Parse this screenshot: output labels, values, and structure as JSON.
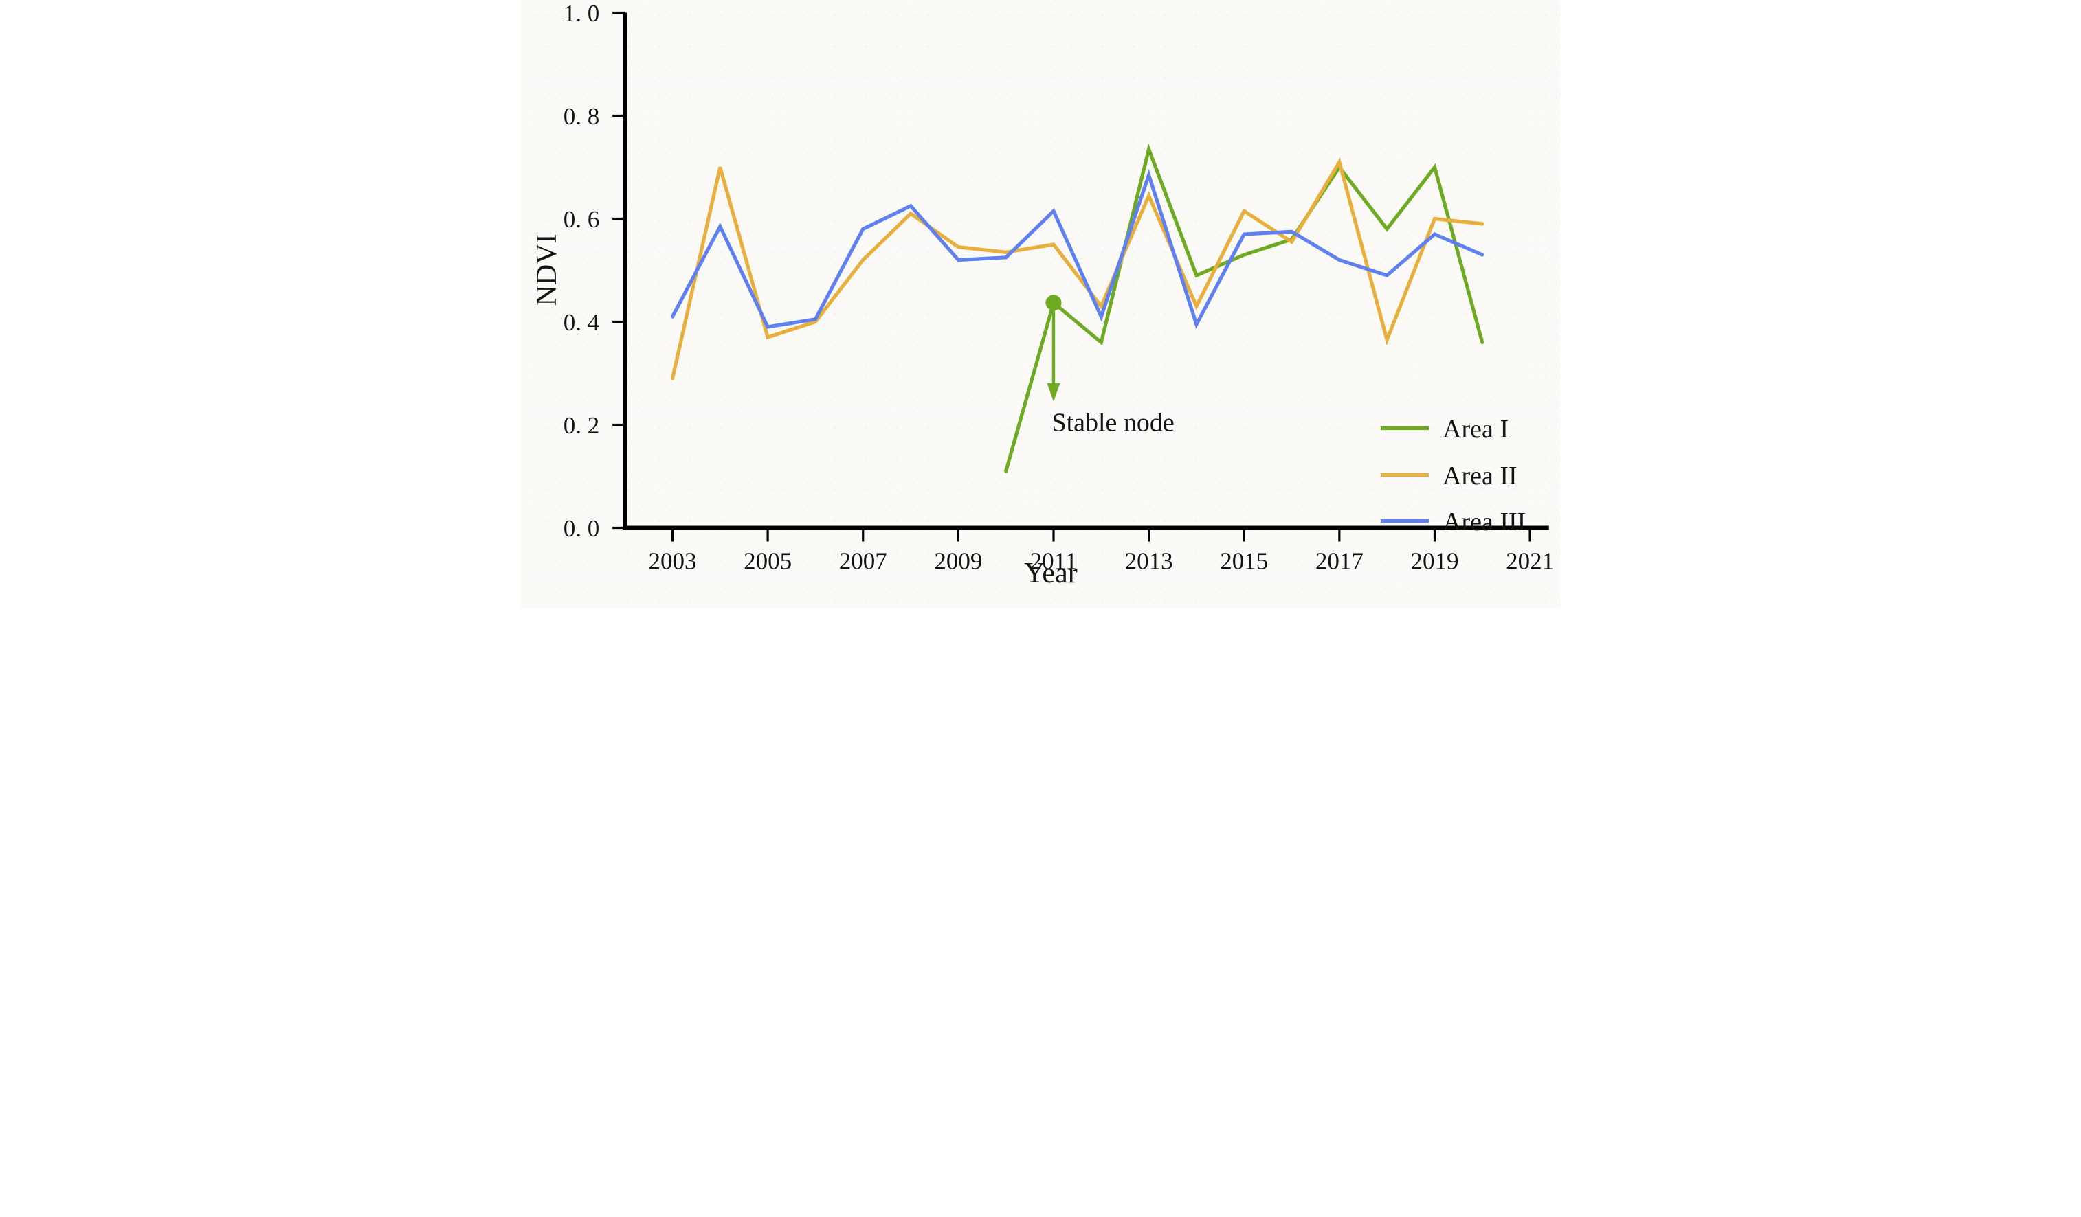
{
  "figure": {
    "background": "#fbfaf7",
    "text_color": "#141414",
    "axis_color": "#000000"
  },
  "chart_data": {
    "type": "line",
    "title": "",
    "xlabel": "Year",
    "ylabel": "NDVI",
    "xlim": [
      2002,
      2021.4
    ],
    "ylim": [
      0.0,
      1.0
    ],
    "grid": false,
    "legend_position": "lower right",
    "x_tick_values": [
      2003,
      2005,
      2007,
      2009,
      2011,
      2013,
      2015,
      2017,
      2019,
      2021
    ],
    "x_tick_labels": [
      "2003",
      "2005",
      "2007",
      "2009",
      "2011",
      "2013",
      "2015",
      "2017",
      "2019",
      "2021"
    ],
    "y_tick_values": [
      0.0,
      0.2,
      0.4,
      0.6,
      0.8,
      1.0
    ],
    "y_tick_labels": [
      "0. 0",
      "0. 2",
      "0. 4",
      "0. 6",
      "0. 8",
      "1. 0"
    ],
    "series": [
      {
        "name": "Area I",
        "color": "#6faa23",
        "x": [
          2010,
          2011,
          2012,
          2013,
          2014,
          2015,
          2016,
          2017,
          2018,
          2019,
          2020
        ],
        "values": [
          0.11,
          0.437,
          0.36,
          0.735,
          0.49,
          0.53,
          0.56,
          0.7,
          0.58,
          0.7,
          0.36
        ]
      },
      {
        "name": "Area II",
        "color": "#e9af3d",
        "x": [
          2003,
          2004,
          2005,
          2006,
          2007,
          2008,
          2009,
          2010,
          2011,
          2012,
          2013,
          2014,
          2015,
          2016,
          2017,
          2018,
          2019,
          2020
        ],
        "values": [
          0.29,
          0.7,
          0.37,
          0.4,
          0.52,
          0.61,
          0.545,
          0.535,
          0.55,
          0.43,
          0.645,
          0.43,
          0.615,
          0.555,
          0.71,
          0.365,
          0.6,
          0.59
        ]
      },
      {
        "name": "Area III",
        "color": "#5f80f0",
        "x": [
          2003,
          2004,
          2005,
          2006,
          2007,
          2008,
          2009,
          2010,
          2011,
          2012,
          2013,
          2014,
          2015,
          2016,
          2017,
          2018,
          2019,
          2020
        ],
        "values": [
          0.41,
          0.585,
          0.39,
          0.405,
          0.58,
          0.625,
          0.52,
          0.525,
          0.615,
          0.41,
          0.685,
          0.395,
          0.57,
          0.575,
          0.52,
          0.49,
          0.57,
          0.53
        ]
      }
    ],
    "annotation": {
      "text": "Stable node",
      "color": "#6faa23",
      "point": {
        "x": 2011,
        "y": 0.437
      },
      "arrow_tip_y": 0.245,
      "label_pos": {
        "x": 2012.25,
        "y": 0.188
      }
    }
  }
}
